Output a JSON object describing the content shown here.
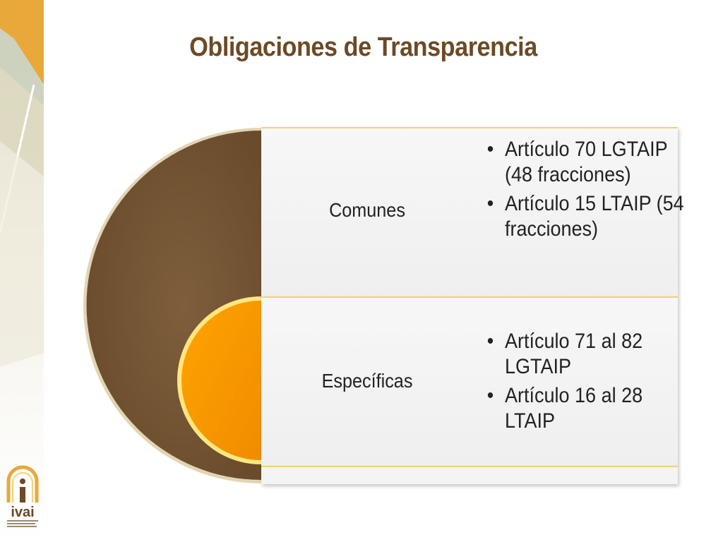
{
  "slide": {
    "title": "Obligaciones de Transparencia"
  },
  "diagram": {
    "items": [
      {
        "label": "Comunes",
        "bullets": [
          "Artículo 70 LGTAIP (48 fracciones)",
          "Artículo 15 LTAIP (54 fracciones)"
        ]
      },
      {
        "label": "Específicas",
        "bullets": [
          "Artículo 71 al 82 LGTAIP",
          "Artículo 16 al 28 LTAIP"
        ]
      }
    ]
  },
  "logo": {
    "name": "ivai"
  },
  "colors": {
    "title": "#6b4a25",
    "outer_arc": "#7a5a38",
    "inner_arc": "#ff9a00",
    "accent_line": "#f2d46a",
    "strip_gold": "#e8a93a",
    "strip_beige": "#e9e4cf"
  }
}
